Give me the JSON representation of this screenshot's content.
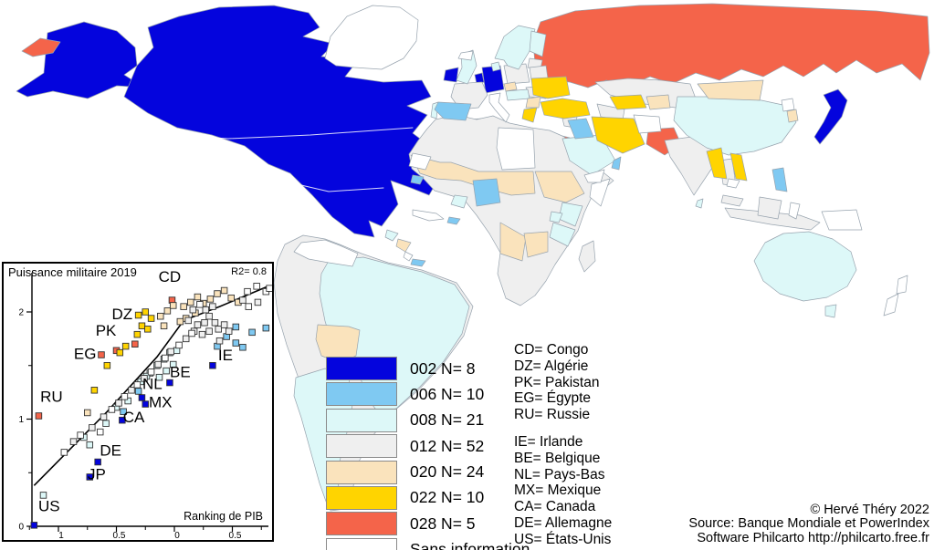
{
  "colors": {
    "blue": "#0404dd",
    "lightblue": "#7fc9f2",
    "cyan": "#ddf8f8",
    "gray": "#efefef",
    "peach": "#fae3bc",
    "yellow": "#ffd400",
    "red": "#f4644a",
    "white": "#ffffff",
    "map_stroke": "#97a3ae"
  },
  "legend": {
    "items": [
      {
        "label": "002 N= 8",
        "color": "#0404dd"
      },
      {
        "label": "006 N= 10",
        "color": "#7fc9f2"
      },
      {
        "label": "008 N= 21",
        "color": "#ddf8f8"
      },
      {
        "label": "012 N= 52",
        "color": "#efefef"
      },
      {
        "label": "020 N= 24",
        "color": "#fae3bc"
      },
      {
        "label": "022 N= 10",
        "color": "#ffd400"
      },
      {
        "label": "028 N= 5",
        "color": "#f4644a"
      },
      {
        "label": "Sans information",
        "color": "#ffffff"
      }
    ]
  },
  "codes": {
    "group1": [
      "CD= Congo",
      "DZ= Algérie",
      "PK= Pakistan",
      "EG= Égypte",
      "RU= Russie"
    ],
    "group2": [
      "IE= Irlande",
      "BE= Belgique",
      "NL= Pays-Bas",
      "MX= Mexique",
      "CA= Canada",
      "DE= Allemagne",
      "US= États-Unis"
    ]
  },
  "credits": {
    "line1": "© Hervé Théry 2022",
    "line2": "Source: Banque Mondiale et PowerIndex",
    "line3": "Software Philcarto http://philcarto.free.fr"
  },
  "chart_data": {
    "type": "scatter",
    "title": "Puissance militaire 2019",
    "r2_label": "R2= 0.8",
    "xlabel": "Ranking de PIB",
    "ylabel": "",
    "xlim": [
      -1.23,
      0.82
    ],
    "ylim": [
      0,
      2.38
    ],
    "x_ticks": [
      {
        "v": -1,
        "label": "1"
      },
      {
        "v": -0.5,
        "label": "0.5"
      },
      {
        "v": 0,
        "label": "0"
      },
      {
        "v": 0.5,
        "label": "0.5"
      }
    ],
    "x_minor": [
      -1.25,
      -0.75,
      -0.25,
      0.25,
      0.75
    ],
    "y_ticks": [
      {
        "v": 0,
        "label": "0"
      },
      {
        "v": 1,
        "label": "1"
      },
      {
        "v": 2,
        "label": "2"
      }
    ],
    "y_minor": [
      0.5,
      1.5
    ],
    "trend_line": [
      [
        -1.21,
        0.38
      ],
      [
        -0.58,
        1.07
      ],
      [
        -0.15,
        1.58
      ],
      [
        0.08,
        1.92
      ],
      [
        0.39,
        2.05
      ],
      [
        0.81,
        2.24
      ]
    ],
    "labels": [
      {
        "text": "CD",
        "x": -0.04,
        "y": 2.28
      },
      {
        "text": "DZ",
        "x": -0.45,
        "y": 1.93
      },
      {
        "text": "PK",
        "x": -0.59,
        "y": 1.78
      },
      {
        "text": "EG",
        "x": -0.77,
        "y": 1.56
      },
      {
        "text": "RU",
        "x": -1.06,
        "y": 1.16
      },
      {
        "text": "IE",
        "x": 0.44,
        "y": 1.55
      },
      {
        "text": "BE",
        "x": 0.05,
        "y": 1.39
      },
      {
        "text": "NL",
        "x": -0.19,
        "y": 1.28
      },
      {
        "text": "MX",
        "x": -0.12,
        "y": 1.11
      },
      {
        "text": "CA",
        "x": -0.35,
        "y": 0.97
      },
      {
        "text": "DE",
        "x": -0.55,
        "y": 0.66
      },
      {
        "text": "JP",
        "x": -0.67,
        "y": 0.44
      },
      {
        "text": "US",
        "x": -1.08,
        "y": 0.14
      }
    ],
    "points": [
      {
        "x": -1.21,
        "y": 0.01,
        "c": "blue"
      },
      {
        "x": -0.73,
        "y": 0.46,
        "c": "blue"
      },
      {
        "x": -0.66,
        "y": 0.6,
        "c": "blue"
      },
      {
        "x": -0.45,
        "y": 0.99,
        "c": "blue"
      },
      {
        "x": -0.25,
        "y": 1.14,
        "c": "blue"
      },
      {
        "x": -0.28,
        "y": 1.2,
        "c": "blue"
      },
      {
        "x": -0.04,
        "y": 1.34,
        "c": "blue"
      },
      {
        "x": 0.33,
        "y": 1.5,
        "c": "blue"
      },
      {
        "x": -1.17,
        "y": 1.03,
        "c": "red"
      },
      {
        "x": -0.63,
        "y": 1.6,
        "c": "red"
      },
      {
        "x": -0.5,
        "y": 1.64,
        "c": "red"
      },
      {
        "x": -0.34,
        "y": 1.7,
        "c": "red"
      },
      {
        "x": -0.02,
        "y": 2.11,
        "c": "red"
      },
      {
        "x": -0.31,
        "y": 1.97,
        "c": "yellow"
      },
      {
        "x": -0.25,
        "y": 2.0,
        "c": "yellow"
      },
      {
        "x": -0.2,
        "y": 1.94,
        "c": "yellow"
      },
      {
        "x": -0.28,
        "y": 1.87,
        "c": "yellow"
      },
      {
        "x": -0.32,
        "y": 1.79,
        "c": "yellow"
      },
      {
        "x": -0.23,
        "y": 1.84,
        "c": "yellow"
      },
      {
        "x": -0.69,
        "y": 1.27,
        "c": "yellow"
      },
      {
        "x": -0.58,
        "y": 1.5,
        "c": "yellow"
      },
      {
        "x": -0.47,
        "y": 1.62,
        "c": "yellow"
      },
      {
        "x": -0.42,
        "y": 1.68,
        "c": "yellow"
      },
      {
        "x": 0.08,
        "y": 2.05,
        "c": "peach"
      },
      {
        "x": 0.14,
        "y": 2.09,
        "c": "peach"
      },
      {
        "x": 0.2,
        "y": 2.14,
        "c": "peach"
      },
      {
        "x": 0.25,
        "y": 2.08,
        "c": "peach"
      },
      {
        "x": 0.31,
        "y": 2.12,
        "c": "peach"
      },
      {
        "x": 0.37,
        "y": 2.17,
        "c": "peach"
      },
      {
        "x": 0.43,
        "y": 2.2,
        "c": "peach"
      },
      {
        "x": 0.49,
        "y": 2.13,
        "c": "peach"
      },
      {
        "x": 0.55,
        "y": 2.09,
        "c": "peach"
      },
      {
        "x": 0.18,
        "y": 1.99,
        "c": "peach"
      },
      {
        "x": 0.1,
        "y": 1.94,
        "c": "peach"
      },
      {
        "x": 0.05,
        "y": 1.91,
        "c": "peach"
      },
      {
        "x": -0.75,
        "y": 1.06,
        "c": "peach"
      },
      {
        "x": -0.06,
        "y": 2.01,
        "c": "peach"
      },
      {
        "x": -0.01,
        "y": 2.06,
        "c": "peach"
      },
      {
        "x": -0.12,
        "y": 1.96,
        "c": "peach"
      },
      {
        "x": -0.09,
        "y": 1.87,
        "c": "peach"
      },
      {
        "x": -1.13,
        "y": 0.29,
        "c": "cyan"
      },
      {
        "x": -0.78,
        "y": 0.83,
        "c": "cyan"
      },
      {
        "x": -0.73,
        "y": 0.76,
        "c": "cyan"
      },
      {
        "x": -0.59,
        "y": 0.96,
        "c": "cyan"
      },
      {
        "x": -0.5,
        "y": 1.11,
        "c": "cyan"
      },
      {
        "x": -0.4,
        "y": 1.17,
        "c": "cyan"
      },
      {
        "x": -0.21,
        "y": 1.43,
        "c": "cyan"
      },
      {
        "x": -0.15,
        "y": 1.5,
        "c": "cyan"
      },
      {
        "x": -0.09,
        "y": 1.56,
        "c": "cyan"
      },
      {
        "x": -0.04,
        "y": 1.62,
        "c": "cyan"
      },
      {
        "x": -0.13,
        "y": 1.39,
        "c": "cyan"
      },
      {
        "x": -0.07,
        "y": 1.45,
        "c": "cyan"
      },
      {
        "x": -0.01,
        "y": 1.51,
        "c": "cyan"
      },
      {
        "x": -0.29,
        "y": 1.35,
        "c": "cyan"
      },
      {
        "x": -0.24,
        "y": 1.4,
        "c": "cyan"
      },
      {
        "x": 0.02,
        "y": 1.64,
        "c": "cyan"
      },
      {
        "x": -0.44,
        "y": 1.07,
        "c": "lightblue"
      },
      {
        "x": 0.53,
        "y": 1.86,
        "c": "lightblue"
      },
      {
        "x": 0.67,
        "y": 1.81,
        "c": "lightblue"
      },
      {
        "x": 0.53,
        "y": 1.71,
        "c": "lightblue"
      },
      {
        "x": 0.79,
        "y": 1.85,
        "c": "lightblue"
      },
      {
        "x": 0.45,
        "y": 1.77,
        "c": "lightblue"
      },
      {
        "x": 0.59,
        "y": 1.67,
        "c": "lightblue"
      },
      {
        "x": -0.31,
        "y": 1.26,
        "c": "lightblue"
      },
      {
        "x": 0.37,
        "y": 1.68,
        "c": "lightblue"
      },
      {
        "x": -0.87,
        "y": 0.79,
        "c": "gray"
      },
      {
        "x": -0.71,
        "y": 0.92,
        "c": "gray"
      },
      {
        "x": -0.61,
        "y": 1.02,
        "c": "gray"
      },
      {
        "x": -0.48,
        "y": 1.15,
        "c": "gray"
      },
      {
        "x": -0.37,
        "y": 1.27,
        "c": "gray"
      },
      {
        "x": -0.26,
        "y": 1.38,
        "c": "gray"
      },
      {
        "x": -0.14,
        "y": 1.51,
        "c": "gray"
      },
      {
        "x": -0.03,
        "y": 1.63,
        "c": "gray"
      },
      {
        "x": 0.1,
        "y": 1.75,
        "c": "gray"
      },
      {
        "x": 0.12,
        "y": 1.92,
        "c": "gray"
      },
      {
        "x": 0.2,
        "y": 1.88,
        "c": "gray"
      },
      {
        "x": 0.26,
        "y": 1.9,
        "c": "gray"
      },
      {
        "x": 0.3,
        "y": 1.96,
        "c": "gray"
      },
      {
        "x": 0.35,
        "y": 1.9,
        "c": "gray"
      },
      {
        "x": 0.17,
        "y": 1.82,
        "c": "gray"
      },
      {
        "x": 0.24,
        "y": 1.79,
        "c": "gray"
      },
      {
        "x": 0.3,
        "y": 1.82,
        "c": "gray"
      },
      {
        "x": 0.38,
        "y": 1.84,
        "c": "gray"
      },
      {
        "x": 0.43,
        "y": 1.88,
        "c": "gray"
      },
      {
        "x": 0.47,
        "y": 1.82,
        "c": "gray"
      },
      {
        "x": 0.39,
        "y": 1.73,
        "c": "gray"
      },
      {
        "x": 0.59,
        "y": 2.11,
        "c": "gray"
      },
      {
        "x": 0.72,
        "y": 2.09,
        "c": "gray"
      },
      {
        "x": 0.27,
        "y": 2.02,
        "c": "gray"
      },
      {
        "x": 0.33,
        "y": 2.05,
        "c": "gray"
      },
      {
        "x": 0.16,
        "y": 2.02,
        "c": "gray"
      },
      {
        "x": -0.95,
        "y": 0.69,
        "c": "white"
      },
      {
        "x": -0.81,
        "y": 0.85,
        "c": "white"
      },
      {
        "x": -0.64,
        "y": 0.88,
        "c": "white"
      },
      {
        "x": -0.54,
        "y": 1.09,
        "c": "white"
      },
      {
        "x": -0.43,
        "y": 1.21,
        "c": "white"
      },
      {
        "x": -0.32,
        "y": 1.32,
        "c": "white"
      },
      {
        "x": -0.2,
        "y": 1.44,
        "c": "white"
      },
      {
        "x": -0.08,
        "y": 1.57,
        "c": "white"
      },
      {
        "x": 0.04,
        "y": 1.69,
        "c": "white"
      },
      {
        "x": 0.15,
        "y": 1.8,
        "c": "white"
      },
      {
        "x": 0.64,
        "y": 2.05,
        "c": "white"
      },
      {
        "x": 0.63,
        "y": 2.19,
        "c": "white"
      },
      {
        "x": 0.71,
        "y": 2.24,
        "c": "white"
      },
      {
        "x": 0.79,
        "y": 2.19,
        "c": "white"
      },
      {
        "x": 0.82,
        "y": 2.22,
        "c": "white"
      },
      {
        "x": 0.22,
        "y": 2.07,
        "c": "white"
      }
    ]
  }
}
